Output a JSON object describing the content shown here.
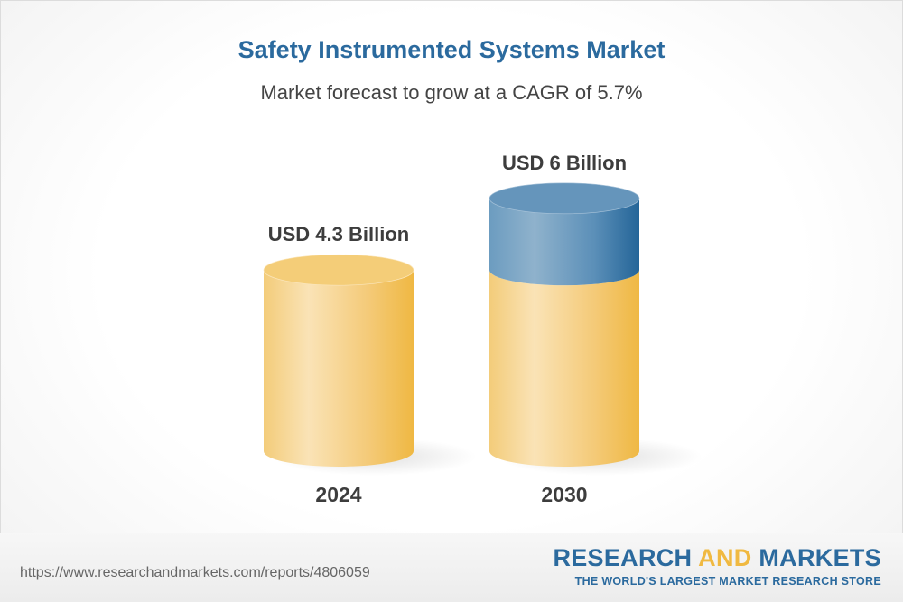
{
  "chart_data": {
    "type": "bar",
    "style": "3d-cylinder",
    "title": "Safety Instrumented Systems Market",
    "subtitle": "Market forecast to grow at a CAGR of 5.7%",
    "categories": [
      "2024",
      "2030"
    ],
    "values": [
      4.3,
      6
    ],
    "data_labels": [
      "USD 4.3 Billion",
      "USD 6 Billion"
    ],
    "unit": "USD Billion",
    "colors": {
      "base": "#f0b941",
      "growth": "#2b6a9e"
    },
    "grid": false
  },
  "footer": {
    "url": "https://www.researchandmarkets.com/reports/4806059",
    "logo": {
      "word1": "RESEARCH",
      "word2": "AND",
      "word3": "MARKETS",
      "tagline": "THE WORLD'S LARGEST MARKET RESEARCH STORE"
    }
  }
}
